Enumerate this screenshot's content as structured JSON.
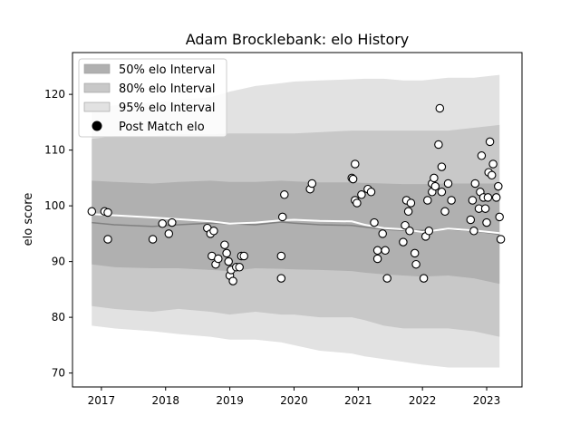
{
  "chart_data": {
    "type": "area",
    "title": "Adam Brocklebank: elo History",
    "xlabel": "",
    "ylabel": "elo score",
    "xlim": [
      2016.55,
      2023.55
    ],
    "ylim": [
      67.5,
      127.5
    ],
    "x_ticks": [
      2017,
      2018,
      2019,
      2020,
      2021,
      2022,
      2023
    ],
    "x_tick_labels": [
      "2017",
      "2018",
      "2019",
      "2020",
      "2021",
      "2022",
      "2023"
    ],
    "y_ticks": [
      70,
      80,
      90,
      100,
      110,
      120
    ],
    "y_tick_labels": [
      "70",
      "80",
      "90",
      "100",
      "110",
      "120"
    ],
    "grid": false,
    "legend_position": "top-left",
    "legend": [
      {
        "label": "50% elo Interval",
        "color": "#b0b0b0"
      },
      {
        "label": "80% elo Interval",
        "color": "#c8c8c8"
      },
      {
        "label": "95% elo Interval",
        "color": "#e2e2e2"
      },
      {
        "label": "Post Match elo",
        "marker": "circle",
        "color": "#000000"
      }
    ],
    "bands": {
      "x": [
        2016.85,
        2017.2,
        2017.8,
        2018.2,
        2018.7,
        2019.0,
        2019.4,
        2019.8,
        2020.0,
        2020.4,
        2020.9,
        2021.1,
        2021.4,
        2021.7,
        2022.0,
        2022.4,
        2022.8,
        2023.2
      ],
      "mean": [
        97.0,
        96.6,
        96.3,
        96.6,
        96.9,
        96.8,
        96.6,
        97.1,
        96.9,
        96.6,
        96.5,
        96.2,
        95.8,
        95.6,
        95.6,
        95.8,
        95.5,
        94.9
      ],
      "p50_low": [
        89.5,
        89.0,
        88.8,
        88.8,
        88.5,
        88.3,
        88.8,
        88.7,
        88.6,
        88.5,
        88.3,
        88.0,
        87.7,
        87.5,
        87.3,
        87.5,
        87.0,
        86.0
      ],
      "p50_high": [
        104.5,
        104.3,
        104.0,
        104.3,
        104.5,
        104.3,
        104.3,
        104.5,
        104.4,
        104.2,
        104.2,
        104.1,
        104.0,
        103.9,
        103.9,
        104.0,
        104.0,
        104.0
      ],
      "p80_low": [
        82.0,
        81.5,
        81.0,
        81.5,
        81.0,
        80.5,
        81.0,
        80.5,
        80.5,
        80.0,
        80.0,
        79.5,
        78.5,
        78.0,
        78.0,
        78.0,
        77.5,
        76.5
      ],
      "p80_high": [
        112.0,
        112.5,
        112.5,
        112.8,
        112.8,
        113.0,
        113.0,
        113.0,
        113.0,
        113.2,
        113.5,
        113.5,
        113.5,
        113.5,
        113.5,
        113.5,
        114.0,
        114.5
      ],
      "p95_low": [
        78.5,
        78.0,
        77.5,
        77.0,
        76.5,
        76.0,
        76.0,
        75.5,
        75.0,
        74.0,
        73.5,
        73.0,
        72.5,
        72.0,
        71.5,
        71.0,
        71.0,
        71.0
      ],
      "p95_high": [
        117.5,
        118.0,
        118.5,
        119.0,
        119.5,
        120.5,
        121.5,
        122.0,
        122.3,
        122.5,
        122.7,
        122.8,
        122.8,
        122.5,
        122.5,
        123.0,
        123.0,
        123.5
      ]
    },
    "trend_line": {
      "x": [
        2016.85,
        2017.2,
        2017.8,
        2018.2,
        2018.7,
        2019.0,
        2019.4,
        2019.8,
        2020.0,
        2020.4,
        2020.9,
        2021.1,
        2021.4,
        2021.7,
        2022.0,
        2022.4,
        2022.8,
        2023.2
      ],
      "y": [
        98.5,
        98.3,
        97.9,
        97.6,
        97.2,
        96.8,
        97.0,
        97.4,
        97.5,
        97.3,
        97.2,
        96.6,
        96.0,
        95.8,
        95.3,
        95.9,
        95.6,
        95.1
      ]
    },
    "series": [
      {
        "name": "Post Match elo",
        "points": [
          [
            2016.85,
            99.0
          ],
          [
            2017.05,
            99.0
          ],
          [
            2017.1,
            98.8
          ],
          [
            2017.1,
            94.0
          ],
          [
            2017.8,
            94.0
          ],
          [
            2017.95,
            96.8
          ],
          [
            2018.05,
            95.0
          ],
          [
            2018.1,
            97.0
          ],
          [
            2018.65,
            96.0
          ],
          [
            2018.7,
            95.0
          ],
          [
            2018.75,
            95.5
          ],
          [
            2018.72,
            91.0
          ],
          [
            2018.78,
            89.5
          ],
          [
            2018.82,
            90.5
          ],
          [
            2018.92,
            93.0
          ],
          [
            2018.95,
            91.5
          ],
          [
            2018.98,
            90.0
          ],
          [
            2019.0,
            87.5
          ],
          [
            2019.05,
            86.5
          ],
          [
            2019.02,
            88.5
          ],
          [
            2019.1,
            89.0
          ],
          [
            2019.15,
            89.0
          ],
          [
            2019.18,
            91.0
          ],
          [
            2019.22,
            91.0
          ],
          [
            2019.8,
            87.0
          ],
          [
            2019.8,
            91.0
          ],
          [
            2019.82,
            98.0
          ],
          [
            2019.85,
            102.0
          ],
          [
            2020.25,
            103.0
          ],
          [
            2020.28,
            104.0
          ],
          [
            2020.9,
            105.0
          ],
          [
            2020.92,
            104.8
          ],
          [
            2020.95,
            107.5
          ],
          [
            2020.95,
            101.0
          ],
          [
            2020.98,
            100.5
          ],
          [
            2021.05,
            102.0
          ],
          [
            2021.15,
            103.0
          ],
          [
            2021.2,
            102.5
          ],
          [
            2021.25,
            97.0
          ],
          [
            2021.3,
            90.5
          ],
          [
            2021.3,
            92.0
          ],
          [
            2021.38,
            95.0
          ],
          [
            2021.42,
            92.0
          ],
          [
            2021.45,
            87.0
          ],
          [
            2021.7,
            93.5
          ],
          [
            2021.73,
            96.5
          ],
          [
            2021.75,
            101.0
          ],
          [
            2021.78,
            99.0
          ],
          [
            2021.8,
            95.5
          ],
          [
            2021.82,
            100.5
          ],
          [
            2021.88,
            91.5
          ],
          [
            2021.9,
            89.5
          ],
          [
            2022.02,
            87.0
          ],
          [
            2022.05,
            94.5
          ],
          [
            2022.08,
            101.0
          ],
          [
            2022.1,
            95.5
          ],
          [
            2022.15,
            104.0
          ],
          [
            2022.15,
            102.5
          ],
          [
            2022.18,
            105.0
          ],
          [
            2022.2,
            103.5
          ],
          [
            2022.25,
            111.0
          ],
          [
            2022.27,
            117.5
          ],
          [
            2022.3,
            107.0
          ],
          [
            2022.3,
            102.5
          ],
          [
            2022.35,
            99.0
          ],
          [
            2022.4,
            104.0
          ],
          [
            2022.45,
            101.0
          ],
          [
            2022.75,
            97.5
          ],
          [
            2022.78,
            101.0
          ],
          [
            2022.8,
            95.5
          ],
          [
            2022.82,
            104.0
          ],
          [
            2022.88,
            99.5
          ],
          [
            2022.9,
            102.5
          ],
          [
            2022.92,
            109.0
          ],
          [
            2022.95,
            101.5
          ],
          [
            2022.98,
            99.5
          ],
          [
            2023.0,
            97.0
          ],
          [
            2023.02,
            101.5
          ],
          [
            2023.03,
            106.0
          ],
          [
            2023.05,
            111.5
          ],
          [
            2023.08,
            105.5
          ],
          [
            2023.1,
            107.5
          ],
          [
            2023.15,
            101.5
          ],
          [
            2023.18,
            103.5
          ],
          [
            2023.2,
            98.0
          ],
          [
            2023.22,
            94.0
          ]
        ]
      }
    ]
  }
}
